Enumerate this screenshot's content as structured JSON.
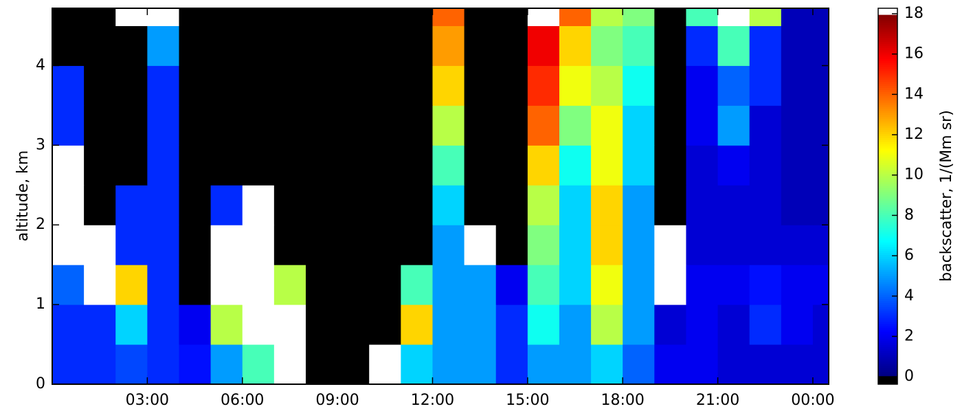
{
  "chart_data": {
    "type": "heatmap",
    "ylabel": "altitude, km",
    "colorbar_label": "backscatter, 1/(Mm sr)",
    "colormap": "jet",
    "under_color": "#000000",
    "over_color": "#ffffff",
    "x_edges": [
      0,
      1,
      2,
      3,
      4,
      5,
      6,
      7,
      8,
      9,
      10,
      11,
      12,
      13,
      14,
      15,
      16,
      17,
      18,
      19,
      20,
      21,
      22,
      23,
      24,
      24.5
    ],
    "y_edges": [
      0,
      0.5,
      1,
      1.5,
      2,
      2.5,
      3,
      3.5,
      4,
      4.5,
      4.72
    ],
    "z": [
      [
        3,
        3,
        3.5,
        3,
        2.5,
        5,
        8,
        18.2,
        -0.2,
        -0.2,
        18.2,
        6,
        5,
        5,
        3,
        5,
        5,
        6,
        4,
        2,
        2,
        1.5,
        1.5,
        1.5,
        1.5
      ],
      [
        3,
        3,
        6,
        3,
        2,
        10,
        18.2,
        18.2,
        -0.2,
        -0.2,
        -0.2,
        12,
        5,
        5,
        3,
        7,
        5,
        10,
        5,
        1.5,
        2,
        1.5,
        3,
        2,
        1.5
      ],
      [
        4,
        18.2,
        12,
        3,
        -0.2,
        18.2,
        18.2,
        10,
        -0.2,
        -0.2,
        -0.2,
        8,
        5,
        5,
        2,
        8,
        6,
        11,
        5,
        18.2,
        2,
        2,
        2.5,
        2,
        2
      ],
      [
        18.2,
        18.2,
        3,
        3,
        -0.2,
        18.2,
        18.2,
        -0.2,
        -0.2,
        -0.2,
        -0.2,
        -0.2,
        5,
        18.2,
        -0.2,
        9,
        6,
        12,
        5,
        18.2,
        1.5,
        1.5,
        1.5,
        1.5,
        1.5
      ],
      [
        18.2,
        -0.2,
        3,
        3,
        -0.2,
        3,
        18.2,
        -0.2,
        -0.2,
        -0.2,
        -0.2,
        -0.2,
        6,
        -0.2,
        -0.2,
        10,
        6,
        12,
        5,
        -0.2,
        1.5,
        1.5,
        1.5,
        1,
        1
      ],
      [
        18.2,
        -0.2,
        -0.2,
        3,
        -0.2,
        -0.2,
        -0.2,
        -0.2,
        -0.2,
        -0.2,
        -0.2,
        -0.2,
        8,
        -0.2,
        -0.2,
        12,
        7,
        11,
        6,
        -0.2,
        1.5,
        2,
        1.5,
        1,
        1
      ],
      [
        3,
        -0.2,
        -0.2,
        3,
        -0.2,
        -0.2,
        -0.2,
        -0.2,
        -0.2,
        -0.2,
        -0.2,
        -0.2,
        10,
        -0.2,
        -0.2,
        14,
        9,
        11,
        6,
        -0.2,
        2,
        5,
        1.5,
        1,
        1
      ],
      [
        3,
        -0.2,
        -0.2,
        3,
        -0.2,
        -0.2,
        -0.2,
        -0.2,
        -0.2,
        -0.2,
        -0.2,
        -0.2,
        12,
        -0.2,
        -0.2,
        15,
        11,
        10,
        7,
        -0.2,
        2,
        4,
        3,
        1,
        1
      ],
      [
        -0.2,
        -0.2,
        -0.2,
        5,
        -0.2,
        -0.2,
        -0.2,
        -0.2,
        -0.2,
        -0.2,
        -0.2,
        -0.2,
        13,
        -0.2,
        -0.2,
        16,
        12,
        9,
        8,
        -0.2,
        3,
        8,
        3,
        1,
        1
      ],
      [
        -0.2,
        -0.2,
        18.2,
        18.2,
        -0.2,
        -0.2,
        -0.2,
        -0.2,
        -0.2,
        -0.2,
        -0.2,
        -0.2,
        14,
        -0.2,
        -0.2,
        18.2,
        14,
        10,
        9,
        -0.2,
        8,
        18.2,
        10,
        1,
        1
      ]
    ],
    "xlim": [
      0,
      24.5
    ],
    "ylim": [
      0,
      4.72
    ],
    "clim": [
      -0.37,
      18.27
    ],
    "xticks": [
      {
        "value": 3,
        "label": "03:00"
      },
      {
        "value": 6,
        "label": "06:00"
      },
      {
        "value": 9,
        "label": "09:00"
      },
      {
        "value": 12,
        "label": "12:00"
      },
      {
        "value": 15,
        "label": "15:00"
      },
      {
        "value": 18,
        "label": "18:00"
      },
      {
        "value": 21,
        "label": "21:00"
      },
      {
        "value": 24,
        "label": "00:00"
      }
    ],
    "yticks": [
      0,
      1,
      2,
      3,
      4
    ],
    "cticks": [
      0,
      2,
      4,
      6,
      8,
      10,
      12,
      14,
      16,
      18
    ]
  }
}
